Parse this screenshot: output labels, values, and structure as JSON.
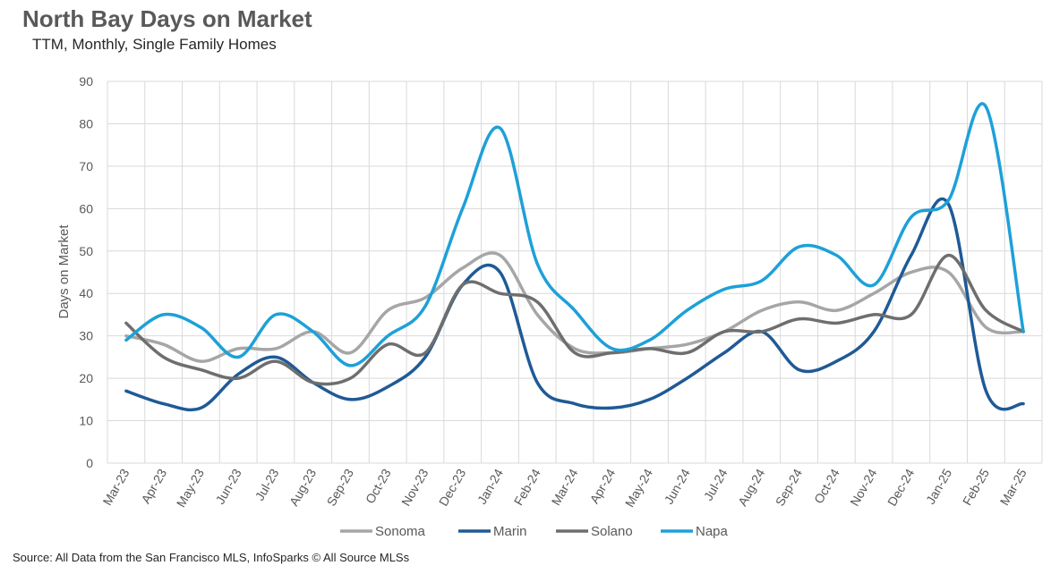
{
  "title": "North Bay Days on Market",
  "subtitle": "TTM, Monthly, Single Family Homes",
  "source": "Source: All Data from the San Francisco MLS, InfoSparks © All Source MLSs",
  "chart_data": {
    "type": "line",
    "title": "North Bay Days on Market",
    "subtitle": "TTM, Monthly, Single Family Homes",
    "xlabel": "",
    "ylabel": "Days on Market",
    "ylim": [
      0,
      90
    ],
    "yticks": [
      0,
      10,
      20,
      30,
      40,
      50,
      60,
      70,
      80,
      90
    ],
    "grid": true,
    "smooth": true,
    "legend": "bottom",
    "categories": [
      "Mar-23",
      "Apr-23",
      "May-23",
      "Jun-23",
      "Jul-23",
      "Aug-23",
      "Sep-23",
      "Oct-23",
      "Nov-23",
      "Dec-23",
      "Jan-24",
      "Feb-24",
      "Mar-24",
      "Apr-24",
      "May-24",
      "Jun-24",
      "Jul-24",
      "Aug-24",
      "Sep-24",
      "Oct-24",
      "Nov-24",
      "Dec-24",
      "Jan-25",
      "Feb-25",
      "Mar-25"
    ],
    "series": [
      {
        "name": "Sonoma",
        "color": "#a6a6a6",
        "values": [
          30,
          28,
          24,
          27,
          27,
          31,
          26,
          36,
          39,
          46,
          49,
          35,
          27,
          26,
          27,
          28,
          31,
          36,
          38,
          36,
          40,
          45,
          45,
          32,
          31
        ]
      },
      {
        "name": "Marin",
        "color": "#1f5a96",
        "values": [
          17,
          14,
          13,
          21,
          25,
          19,
          15,
          18,
          25,
          42,
          45,
          19,
          14,
          13,
          15,
          20,
          26,
          31,
          22,
          24,
          31,
          49,
          61,
          17,
          14
        ]
      },
      {
        "name": "Solano",
        "color": "#6e6e6e",
        "values": [
          33,
          25,
          22,
          20,
          24,
          19,
          20,
          28,
          26,
          42,
          40,
          38,
          26,
          26,
          27,
          26,
          31,
          31,
          34,
          33,
          35,
          35,
          49,
          36,
          31
        ]
      },
      {
        "name": "Napa",
        "color": "#1ea0d8",
        "values": [
          29,
          35,
          32,
          25,
          35,
          31,
          23,
          30,
          37,
          60,
          79,
          47,
          36,
          27,
          29,
          36,
          41,
          43,
          51,
          49,
          42,
          58,
          62,
          84,
          31
        ]
      }
    ]
  }
}
